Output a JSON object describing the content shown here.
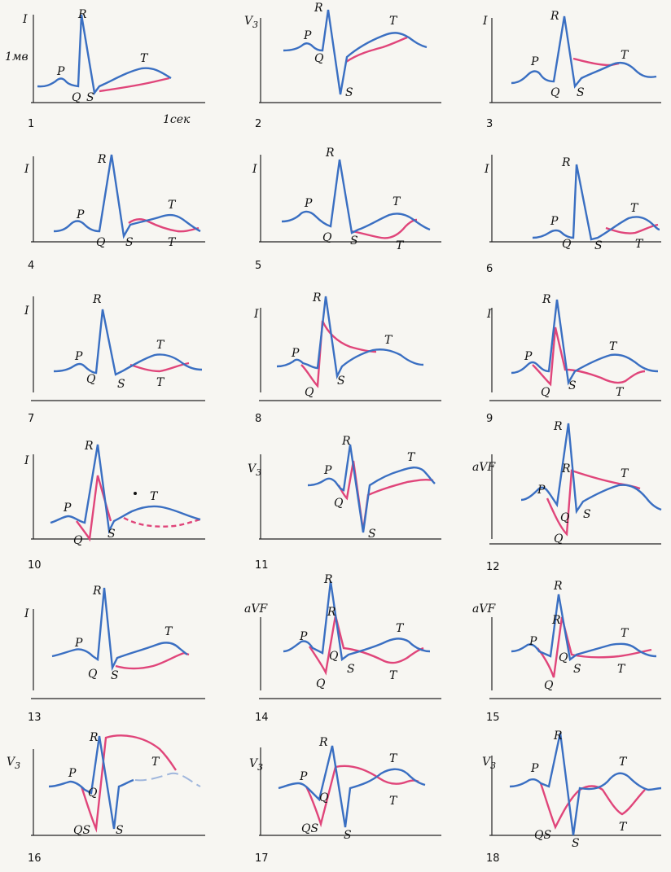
{
  "colors": {
    "normal": "#3a6fc2",
    "pathologic": "#e0457a",
    "ink": "#111111",
    "background": "#f7f6f2"
  },
  "units": {
    "amplitude": "1мв",
    "time": "1сек"
  },
  "panels": [
    {
      "number": "1",
      "lead": "I",
      "labels": [
        "R",
        "P",
        "Q",
        "S",
        "T"
      ]
    },
    {
      "number": "2",
      "lead": "V3",
      "labels": [
        "R",
        "P",
        "Q",
        "S",
        "T"
      ]
    },
    {
      "number": "3",
      "lead": "I",
      "labels": [
        "R",
        "P",
        "Q",
        "S",
        "T"
      ]
    },
    {
      "number": "4",
      "lead": "I",
      "labels": [
        "R",
        "P",
        "Q",
        "S",
        "T",
        "T"
      ]
    },
    {
      "number": "5",
      "lead": "I",
      "labels": [
        "R",
        "P",
        "Q",
        "S",
        "T",
        "T"
      ]
    },
    {
      "number": "6",
      "lead": "I",
      "labels": [
        "R",
        "P",
        "Q",
        "S",
        "T",
        "T"
      ]
    },
    {
      "number": "7",
      "lead": "I",
      "labels": [
        "R",
        "P",
        "Q",
        "S",
        "T",
        "T"
      ]
    },
    {
      "number": "8",
      "lead": "I",
      "labels": [
        "R",
        "P",
        "Q",
        "S",
        "T"
      ]
    },
    {
      "number": "9",
      "lead": "I",
      "labels": [
        "R",
        "P",
        "Q",
        "S",
        "T",
        "T"
      ]
    },
    {
      "number": "10",
      "lead": "I",
      "labels": [
        "R",
        "P",
        "Q",
        "S",
        "T"
      ]
    },
    {
      "number": "11",
      "lead": "V3",
      "labels": [
        "R",
        "P",
        "Q",
        "S",
        "T"
      ]
    },
    {
      "number": "12",
      "lead": "aVF",
      "labels": [
        "R",
        "R",
        "P",
        "Q",
        "S",
        "T",
        "Q"
      ]
    },
    {
      "number": "13",
      "lead": "I",
      "labels": [
        "R",
        "P",
        "Q",
        "S",
        "T"
      ]
    },
    {
      "number": "14",
      "lead": "aVF",
      "labels": [
        "R",
        "R",
        "P",
        "Q",
        "Q",
        "S",
        "T",
        "T"
      ]
    },
    {
      "number": "15",
      "lead": "aVF",
      "labels": [
        "R",
        "R",
        "P",
        "Q",
        "Q",
        "S",
        "T",
        "T"
      ]
    },
    {
      "number": "16",
      "lead": "V3",
      "labels": [
        "R",
        "P",
        "Q",
        "QS",
        "S",
        "T"
      ]
    },
    {
      "number": "17",
      "lead": "V3",
      "labels": [
        "R",
        "P",
        "Q",
        "QS",
        "S",
        "T",
        "T"
      ]
    },
    {
      "number": "18",
      "lead": "V3",
      "labels": [
        "R",
        "P",
        "QS",
        "S",
        "T",
        "T"
      ]
    }
  ]
}
